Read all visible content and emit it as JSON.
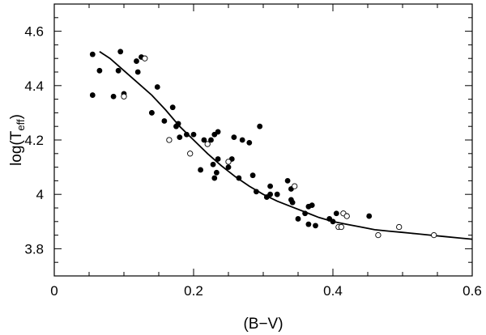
{
  "chart_data": {
    "type": "scatter",
    "xlabel": "(B−V)",
    "ylabel_main": "log(T",
    "ylabel_sub": "eff",
    "ylabel_close": ")",
    "xlim": [
      0,
      0.6
    ],
    "ylim": [
      3.7,
      4.7
    ],
    "grid": false,
    "legend": "none",
    "x_ticks": [
      {
        "value": 0,
        "label": "0"
      },
      {
        "value": 0.2,
        "label": "0.2"
      },
      {
        "value": 0.4,
        "label": "0.4"
      },
      {
        "value": 0.6,
        "label": "0.6"
      }
    ],
    "y_ticks": [
      {
        "value": 3.8,
        "label": "3.8"
      },
      {
        "value": 4.0,
        "label": "4"
      },
      {
        "value": 4.2,
        "label": "4.2"
      },
      {
        "value": 4.4,
        "label": "4.4"
      },
      {
        "value": 4.6,
        "label": "4.6"
      }
    ],
    "filled_points": [
      [
        0.055,
        4.515
      ],
      [
        0.055,
        4.365
      ],
      [
        0.065,
        4.455
      ],
      [
        0.085,
        4.36
      ],
      [
        0.092,
        4.455
      ],
      [
        0.095,
        4.525
      ],
      [
        0.1,
        4.37
      ],
      [
        0.118,
        4.49
      ],
      [
        0.12,
        4.45
      ],
      [
        0.125,
        4.505
      ],
      [
        0.14,
        4.3
      ],
      [
        0.14,
        4.3
      ],
      [
        0.148,
        4.395
      ],
      [
        0.158,
        4.27
      ],
      [
        0.17,
        4.32
      ],
      [
        0.178,
        4.26
      ],
      [
        0.175,
        4.25
      ],
      [
        0.18,
        4.21
      ],
      [
        0.19,
        4.22
      ],
      [
        0.2,
        4.22
      ],
      [
        0.21,
        4.09
      ],
      [
        0.215,
        4.2
      ],
      [
        0.225,
        4.2
      ],
      [
        0.23,
        4.06
      ],
      [
        0.228,
        4.11
      ],
      [
        0.23,
        4.22
      ],
      [
        0.235,
        4.23
      ],
      [
        0.233,
        4.08
      ],
      [
        0.235,
        4.13
      ],
      [
        0.25,
        4.1
      ],
      [
        0.255,
        4.13
      ],
      [
        0.258,
        4.21
      ],
      [
        0.265,
        4.06
      ],
      [
        0.27,
        4.2
      ],
      [
        0.28,
        4.19
      ],
      [
        0.285,
        4.07
      ],
      [
        0.29,
        4.01
      ],
      [
        0.295,
        4.25
      ],
      [
        0.305,
        3.99
      ],
      [
        0.31,
        4.03
      ],
      [
        0.31,
        4.0
      ],
      [
        0.32,
        4.0
      ],
      [
        0.335,
        4.05
      ],
      [
        0.34,
        4.02
      ],
      [
        0.34,
        3.98
      ],
      [
        0.342,
        3.97
      ],
      [
        0.35,
        3.91
      ],
      [
        0.36,
        3.93
      ],
      [
        0.365,
        3.89
      ],
      [
        0.365,
        3.955
      ],
      [
        0.37,
        3.96
      ],
      [
        0.375,
        3.885
      ],
      [
        0.395,
        3.91
      ],
      [
        0.4,
        3.9
      ],
      [
        0.405,
        3.93
      ],
      [
        0.415,
        3.93
      ],
      [
        0.42,
        3.92
      ],
      [
        0.452,
        3.92
      ]
    ],
    "open_points": [
      [
        0.1,
        4.36
      ],
      [
        0.13,
        4.5
      ],
      [
        0.165,
        4.2
      ],
      [
        0.195,
        4.15
      ],
      [
        0.22,
        4.185
      ],
      [
        0.25,
        4.12
      ],
      [
        0.345,
        4.03
      ],
      [
        0.408,
        3.88
      ],
      [
        0.412,
        3.88
      ],
      [
        0.415,
        3.93
      ],
      [
        0.42,
        3.92
      ],
      [
        0.465,
        3.85
      ],
      [
        0.495,
        3.88
      ],
      [
        0.545,
        3.85
      ]
    ],
    "fit_curve": [
      [
        0.065,
        4.525
      ],
      [
        0.08,
        4.5
      ],
      [
        0.1,
        4.455
      ],
      [
        0.12,
        4.41
      ],
      [
        0.14,
        4.365
      ],
      [
        0.16,
        4.31
      ],
      [
        0.18,
        4.25
      ],
      [
        0.2,
        4.2
      ],
      [
        0.22,
        4.15
      ],
      [
        0.24,
        4.105
      ],
      [
        0.26,
        4.065
      ],
      [
        0.28,
        4.03
      ],
      [
        0.3,
        4.0
      ],
      [
        0.32,
        3.975
      ],
      [
        0.34,
        3.955
      ],
      [
        0.36,
        3.935
      ],
      [
        0.38,
        3.915
      ],
      [
        0.4,
        3.9
      ],
      [
        0.42,
        3.89
      ],
      [
        0.44,
        3.88
      ],
      [
        0.46,
        3.87
      ],
      [
        0.48,
        3.865
      ],
      [
        0.5,
        3.86
      ],
      [
        0.52,
        3.855
      ],
      [
        0.54,
        3.85
      ],
      [
        0.56,
        3.845
      ],
      [
        0.58,
        3.84
      ],
      [
        0.6,
        3.835
      ]
    ]
  }
}
